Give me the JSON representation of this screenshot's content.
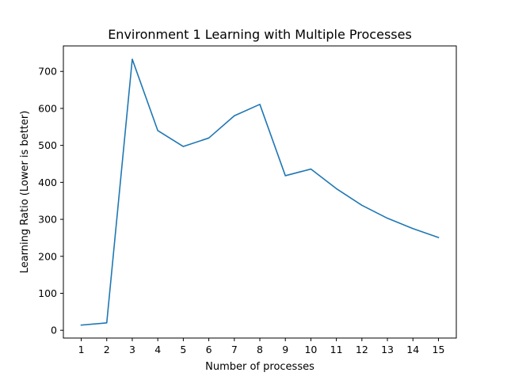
{
  "chart_data": {
    "type": "line",
    "title": "Environment 1 Learning with Multiple Processes",
    "xlabel": "Number of processes",
    "ylabel": "Learning Ratio (Lower is better)",
    "x": [
      1,
      2,
      3,
      4,
      5,
      6,
      7,
      8,
      9,
      10,
      11,
      12,
      13,
      14,
      15
    ],
    "series": [
      {
        "values": [
          14,
          20,
          733,
          540,
          497,
          520,
          580,
          611,
          418,
          436,
          383,
          338,
          303,
          275,
          251
        ],
        "color": "#1f77b4"
      }
    ],
    "xticks": [
      "1",
      "2",
      "3",
      "4",
      "5",
      "6",
      "7",
      "8",
      "9",
      "10",
      "11",
      "12",
      "13",
      "14",
      "15"
    ],
    "yticks": [
      "0",
      "100",
      "200",
      "300",
      "400",
      "500",
      "600",
      "700"
    ],
    "xlim": [
      0.3,
      15.7
    ],
    "ylim": [
      -21,
      769
    ],
    "grid": false,
    "legend": "none"
  }
}
